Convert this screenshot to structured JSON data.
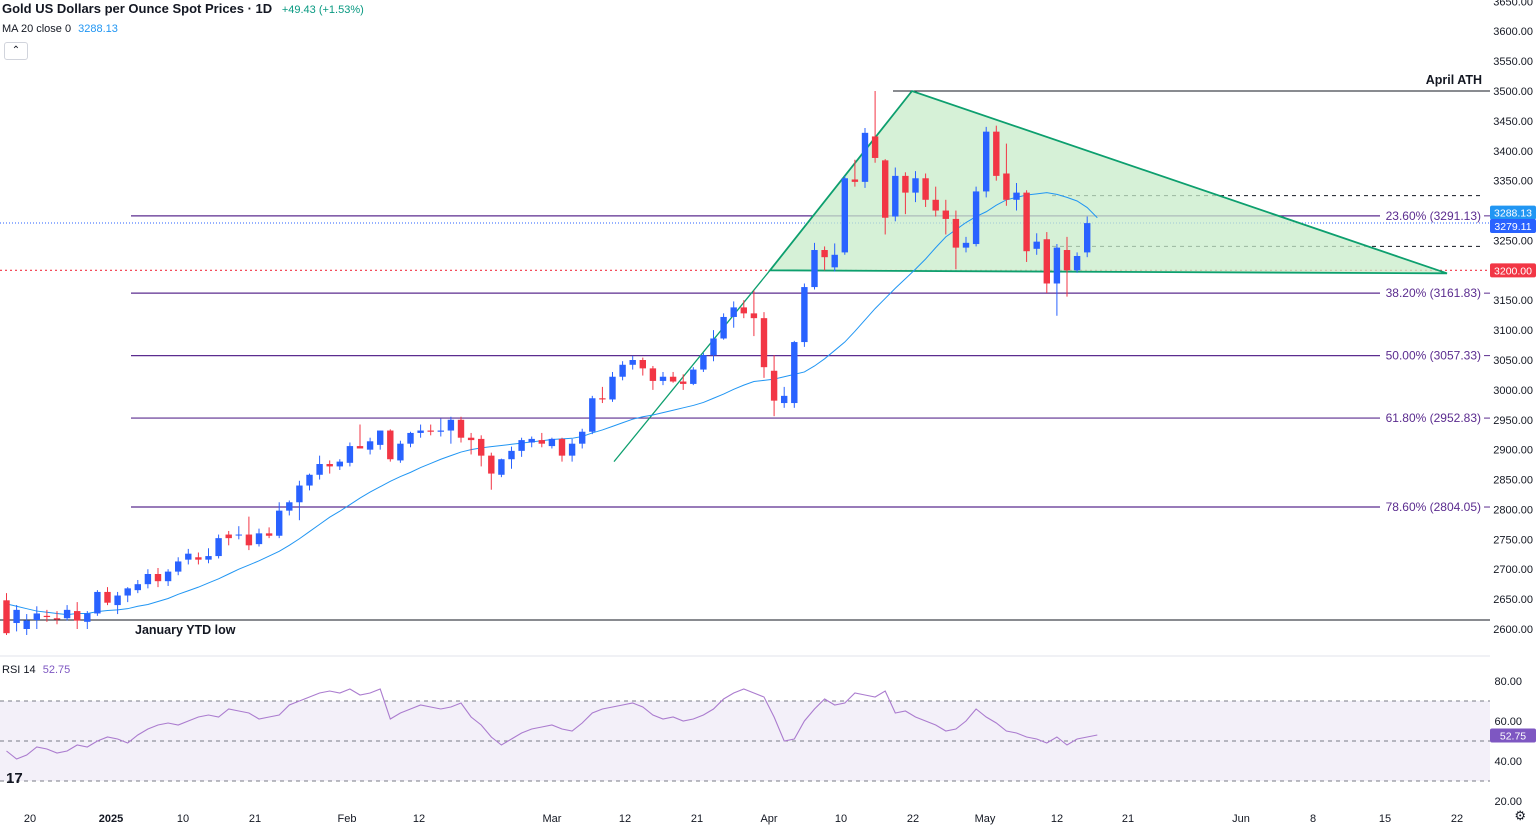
{
  "header": {
    "title": "Gold US Dollars per Ounce Spot Prices · 1D",
    "change": "+49.43 (+1.53%)",
    "ma_label": "MA 20 close 0",
    "ma_value": "3288.13",
    "collapse_icon": "chevron-up-icon"
  },
  "rsi": {
    "label": "RSI 14",
    "value": "52.75"
  },
  "annotations": {
    "ath": "April ATH",
    "ytd_low": "January YTD low"
  },
  "price_labels": {
    "ma": "3288.13",
    "last": "3279.11",
    "hline": "3200.00",
    "rsi": "52.75"
  },
  "colors": {
    "up": "#2962ff",
    "down": "#f23645",
    "ma": "#2196f3",
    "fib": "#5b2c8f",
    "triangle": "#0d9f6e",
    "rsi": "#ab7ccf"
  },
  "chart_data": {
    "type": "candlestick",
    "title": "Gold US Dollars per Ounce Spot Prices · 1D",
    "price_axis": [
      3650,
      3600,
      3550,
      3500,
      3450,
      3400,
      3350,
      3300,
      3250,
      3200,
      3150,
      3100,
      3050,
      3000,
      2950,
      2900,
      2850,
      2800,
      2750,
      2700,
      2650,
      2600
    ],
    "x_ticks": [
      "20",
      "2025",
      "10",
      "21",
      "Feb",
      "12",
      "Mar",
      "12",
      "21",
      "Apr",
      "10",
      "22",
      "May",
      "12",
      "21",
      "Jun",
      "8",
      "15",
      "22"
    ],
    "rsi_axis": [
      80,
      60,
      40,
      20
    ],
    "fib_levels": [
      {
        "label": "23.60% (3291.13)",
        "value": 3291.13
      },
      {
        "label": "38.20% (3161.83)",
        "value": 3161.83
      },
      {
        "label": "50.00% (3057.33)",
        "value": 3057.33
      },
      {
        "label": "61.80% (2952.83)",
        "value": 2952.83
      },
      {
        "label": "78.60% (2804.05)",
        "value": 2804.05
      }
    ],
    "ath_level": 3500,
    "ytd_low_level": 2615,
    "support_level": 3200,
    "dashed_levels": [
      3325,
      3240
    ],
    "candles": [
      {
        "o": 2648,
        "h": 2660,
        "l": 2590,
        "c": 2593
      },
      {
        "o": 2610,
        "h": 2640,
        "l": 2596,
        "c": 2632
      },
      {
        "o": 2600,
        "h": 2625,
        "l": 2590,
        "c": 2614
      },
      {
        "o": 2615,
        "h": 2638,
        "l": 2600,
        "c": 2626
      },
      {
        "o": 2622,
        "h": 2632,
        "l": 2612,
        "c": 2620
      },
      {
        "o": 2618,
        "h": 2630,
        "l": 2608,
        "c": 2616
      },
      {
        "o": 2618,
        "h": 2640,
        "l": 2614,
        "c": 2632
      },
      {
        "o": 2630,
        "h": 2645,
        "l": 2600,
        "c": 2614
      },
      {
        "o": 2612,
        "h": 2630,
        "l": 2600,
        "c": 2626
      },
      {
        "o": 2626,
        "h": 2665,
        "l": 2622,
        "c": 2662
      },
      {
        "o": 2662,
        "h": 2670,
        "l": 2640,
        "c": 2644
      },
      {
        "o": 2640,
        "h": 2662,
        "l": 2625,
        "c": 2656
      },
      {
        "o": 2656,
        "h": 2670,
        "l": 2645,
        "c": 2668
      },
      {
        "o": 2665,
        "h": 2682,
        "l": 2660,
        "c": 2675
      },
      {
        "o": 2675,
        "h": 2700,
        "l": 2668,
        "c": 2692
      },
      {
        "o": 2692,
        "h": 2702,
        "l": 2670,
        "c": 2680
      },
      {
        "o": 2680,
        "h": 2700,
        "l": 2672,
        "c": 2696
      },
      {
        "o": 2696,
        "h": 2720,
        "l": 2690,
        "c": 2713
      },
      {
        "o": 2716,
        "h": 2734,
        "l": 2708,
        "c": 2726
      },
      {
        "o": 2720,
        "h": 2728,
        "l": 2708,
        "c": 2716
      },
      {
        "o": 2716,
        "h": 2735,
        "l": 2710,
        "c": 2722
      },
      {
        "o": 2722,
        "h": 2758,
        "l": 2718,
        "c": 2752
      },
      {
        "o": 2758,
        "h": 2764,
        "l": 2740,
        "c": 2752
      },
      {
        "o": 2758,
        "h": 2772,
        "l": 2750,
        "c": 2758
      },
      {
        "o": 2758,
        "h": 2788,
        "l": 2732,
        "c": 2740
      },
      {
        "o": 2742,
        "h": 2768,
        "l": 2738,
        "c": 2760
      },
      {
        "o": 2760,
        "h": 2770,
        "l": 2752,
        "c": 2756
      },
      {
        "o": 2756,
        "h": 2812,
        "l": 2752,
        "c": 2798
      },
      {
        "o": 2798,
        "h": 2815,
        "l": 2790,
        "c": 2812
      },
      {
        "o": 2812,
        "h": 2848,
        "l": 2782,
        "c": 2840
      },
      {
        "o": 2840,
        "h": 2860,
        "l": 2832,
        "c": 2858
      },
      {
        "o": 2858,
        "h": 2890,
        "l": 2850,
        "c": 2876
      },
      {
        "o": 2876,
        "h": 2882,
        "l": 2860,
        "c": 2872
      },
      {
        "o": 2872,
        "h": 2884,
        "l": 2866,
        "c": 2880
      },
      {
        "o": 2878,
        "h": 2912,
        "l": 2872,
        "c": 2906
      },
      {
        "o": 2906,
        "h": 2942,
        "l": 2902,
        "c": 2902
      },
      {
        "o": 2900,
        "h": 2920,
        "l": 2892,
        "c": 2914
      },
      {
        "o": 2908,
        "h": 2932,
        "l": 2900,
        "c": 2932
      },
      {
        "o": 2932,
        "h": 2934,
        "l": 2880,
        "c": 2884
      },
      {
        "o": 2882,
        "h": 2915,
        "l": 2878,
        "c": 2910
      },
      {
        "o": 2910,
        "h": 2930,
        "l": 2904,
        "c": 2928
      },
      {
        "o": 2928,
        "h": 2942,
        "l": 2920,
        "c": 2932
      },
      {
        "o": 2932,
        "h": 2942,
        "l": 2924,
        "c": 2930
      },
      {
        "o": 2930,
        "h": 2952,
        "l": 2922,
        "c": 2932
      },
      {
        "o": 2932,
        "h": 2955,
        "l": 2910,
        "c": 2950
      },
      {
        "o": 2950,
        "h": 2955,
        "l": 2912,
        "c": 2920
      },
      {
        "o": 2920,
        "h": 2928,
        "l": 2892,
        "c": 2916
      },
      {
        "o": 2918,
        "h": 2924,
        "l": 2872,
        "c": 2890
      },
      {
        "o": 2890,
        "h": 2895,
        "l": 2833,
        "c": 2860
      },
      {
        "o": 2858,
        "h": 2885,
        "l": 2854,
        "c": 2884
      },
      {
        "o": 2884,
        "h": 2905,
        "l": 2868,
        "c": 2898
      },
      {
        "o": 2898,
        "h": 2920,
        "l": 2888,
        "c": 2916
      },
      {
        "o": 2912,
        "h": 2922,
        "l": 2904,
        "c": 2918
      },
      {
        "o": 2916,
        "h": 2928,
        "l": 2904,
        "c": 2910
      },
      {
        "o": 2906,
        "h": 2920,
        "l": 2902,
        "c": 2918
      },
      {
        "o": 2918,
        "h": 2920,
        "l": 2880,
        "c": 2890
      },
      {
        "o": 2890,
        "h": 2918,
        "l": 2880,
        "c": 2910
      },
      {
        "o": 2910,
        "h": 2935,
        "l": 2902,
        "c": 2930
      },
      {
        "o": 2930,
        "h": 2990,
        "l": 2926,
        "c": 2986
      },
      {
        "o": 2986,
        "h": 3005,
        "l": 2978,
        "c": 2984
      },
      {
        "o": 2984,
        "h": 3030,
        "l": 2980,
        "c": 3022
      },
      {
        "o": 3022,
        "h": 3048,
        "l": 3016,
        "c": 3042
      },
      {
        "o": 3042,
        "h": 3057,
        "l": 3034,
        "c": 3050
      },
      {
        "o": 3050,
        "h": 3054,
        "l": 3024,
        "c": 3036
      },
      {
        "o": 3036,
        "h": 3040,
        "l": 3000,
        "c": 3015
      },
      {
        "o": 3015,
        "h": 3030,
        "l": 3008,
        "c": 3022
      },
      {
        "o": 3022,
        "h": 3030,
        "l": 3012,
        "c": 3014
      },
      {
        "o": 3014,
        "h": 3026,
        "l": 3000,
        "c": 3010
      },
      {
        "o": 3010,
        "h": 3038,
        "l": 3008,
        "c": 3034
      },
      {
        "o": 3034,
        "h": 3062,
        "l": 3030,
        "c": 3058
      },
      {
        "o": 3058,
        "h": 3100,
        "l": 3048,
        "c": 3086
      },
      {
        "o": 3086,
        "h": 3128,
        "l": 3084,
        "c": 3122
      },
      {
        "o": 3122,
        "h": 3148,
        "l": 3104,
        "c": 3138
      },
      {
        "o": 3138,
        "h": 3150,
        "l": 3120,
        "c": 3128
      },
      {
        "o": 3128,
        "h": 3166,
        "l": 3090,
        "c": 3120
      },
      {
        "o": 3120,
        "h": 3130,
        "l": 3020,
        "c": 3038
      },
      {
        "o": 3032,
        "h": 3058,
        "l": 2956,
        "c": 2982
      },
      {
        "o": 2978,
        "h": 3005,
        "l": 2970,
        "c": 2990
      },
      {
        "o": 2978,
        "h": 3082,
        "l": 2970,
        "c": 3080
      },
      {
        "o": 3080,
        "h": 3178,
        "l": 3072,
        "c": 3172
      },
      {
        "o": 3172,
        "h": 3246,
        "l": 3168,
        "c": 3234
      },
      {
        "o": 3234,
        "h": 3240,
        "l": 3200,
        "c": 3222
      },
      {
        "o": 3205,
        "h": 3245,
        "l": 3198,
        "c": 3226
      },
      {
        "o": 3230,
        "h": 3358,
        "l": 3226,
        "c": 3354
      },
      {
        "o": 3352,
        "h": 3385,
        "l": 3340,
        "c": 3348
      },
      {
        "o": 3348,
        "h": 3438,
        "l": 3338,
        "c": 3430
      },
      {
        "o": 3424,
        "h": 3500,
        "l": 3380,
        "c": 3388
      },
      {
        "o": 3384,
        "h": 3386,
        "l": 3260,
        "c": 3288
      },
      {
        "o": 3290,
        "h": 3372,
        "l": 3282,
        "c": 3358
      },
      {
        "o": 3358,
        "h": 3364,
        "l": 3294,
        "c": 3330
      },
      {
        "o": 3330,
        "h": 3366,
        "l": 3314,
        "c": 3354
      },
      {
        "o": 3354,
        "h": 3362,
        "l": 3306,
        "c": 3318
      },
      {
        "o": 3318,
        "h": 3340,
        "l": 3290,
        "c": 3300
      },
      {
        "o": 3300,
        "h": 3318,
        "l": 3260,
        "c": 3286
      },
      {
        "o": 3286,
        "h": 3300,
        "l": 3202,
        "c": 3238
      },
      {
        "o": 3238,
        "h": 3256,
        "l": 3230,
        "c": 3246
      },
      {
        "o": 3244,
        "h": 3340,
        "l": 3240,
        "c": 3332
      },
      {
        "o": 3332,
        "h": 3440,
        "l": 3322,
        "c": 3432
      },
      {
        "o": 3432,
        "h": 3442,
        "l": 3350,
        "c": 3358
      },
      {
        "o": 3362,
        "h": 3412,
        "l": 3308,
        "c": 3318
      },
      {
        "o": 3318,
        "h": 3346,
        "l": 3300,
        "c": 3330
      },
      {
        "o": 3330,
        "h": 3334,
        "l": 3214,
        "c": 3232
      },
      {
        "o": 3236,
        "h": 3262,
        "l": 3226,
        "c": 3248
      },
      {
        "o": 3252,
        "h": 3264,
        "l": 3162,
        "c": 3178
      },
      {
        "o": 3178,
        "h": 3244,
        "l": 3124,
        "c": 3238
      },
      {
        "o": 3234,
        "h": 3256,
        "l": 3156,
        "c": 3200
      },
      {
        "o": 3200,
        "h": 3230,
        "l": 3196,
        "c": 3224
      },
      {
        "o": 3230,
        "h": 3290,
        "l": 3222,
        "c": 3279
      }
    ],
    "ma20": [
      2642,
      2638,
      2634,
      2630,
      2628,
      2626,
      2624,
      2626,
      2626,
      2629,
      2631,
      2632,
      2634,
      2638,
      2641,
      2646,
      2651,
      2658,
      2664,
      2670,
      2677,
      2684,
      2692,
      2700,
      2707,
      2714,
      2722,
      2730,
      2740,
      2751,
      2763,
      2775,
      2787,
      2797,
      2808,
      2819,
      2829,
      2838,
      2847,
      2855,
      2862,
      2870,
      2877,
      2884,
      2890,
      2896,
      2900,
      2903,
      2905,
      2907,
      2909,
      2911,
      2913,
      2915,
      2917,
      2918,
      2919,
      2922,
      2928,
      2933,
      2939,
      2945,
      2951,
      2955,
      2958,
      2962,
      2966,
      2970,
      2974,
      2979,
      2986,
      2993,
      3001,
      3008,
      3014,
      3016,
      3018,
      3022,
      3026,
      3030,
      3040,
      3052,
      3066,
      3080,
      3098,
      3117,
      3136,
      3153,
      3170,
      3186,
      3202,
      3219,
      3238,
      3256,
      3268,
      3280,
      3290,
      3298,
      3309,
      3318,
      3322,
      3326,
      3328,
      3330,
      3327,
      3322,
      3316,
      3305,
      3288
    ],
    "rsi14": [
      45,
      41,
      43,
      47,
      46,
      44,
      45,
      48,
      47,
      50,
      52,
      51,
      49,
      53,
      56,
      58,
      59,
      58,
      60,
      62,
      63,
      62,
      66,
      65,
      64,
      61,
      62,
      63,
      68,
      70,
      72,
      74,
      75,
      74,
      76,
      73,
      74,
      76,
      61,
      64,
      66,
      68,
      67,
      66,
      67,
      69,
      62,
      58,
      52,
      48,
      51,
      54,
      56,
      57,
      58,
      56,
      55,
      59,
      64,
      66,
      67,
      68,
      69,
      67,
      63,
      61,
      62,
      60,
      61,
      63,
      66,
      71,
      74,
      76,
      74,
      72,
      62,
      50,
      51,
      60,
      66,
      71,
      68,
      69,
      74,
      73,
      72,
      75,
      64,
      65,
      62,
      60,
      58,
      55,
      56,
      60,
      66,
      62,
      59,
      55,
      54,
      52,
      51,
      49,
      52,
      48,
      51,
      52,
      53
    ]
  }
}
